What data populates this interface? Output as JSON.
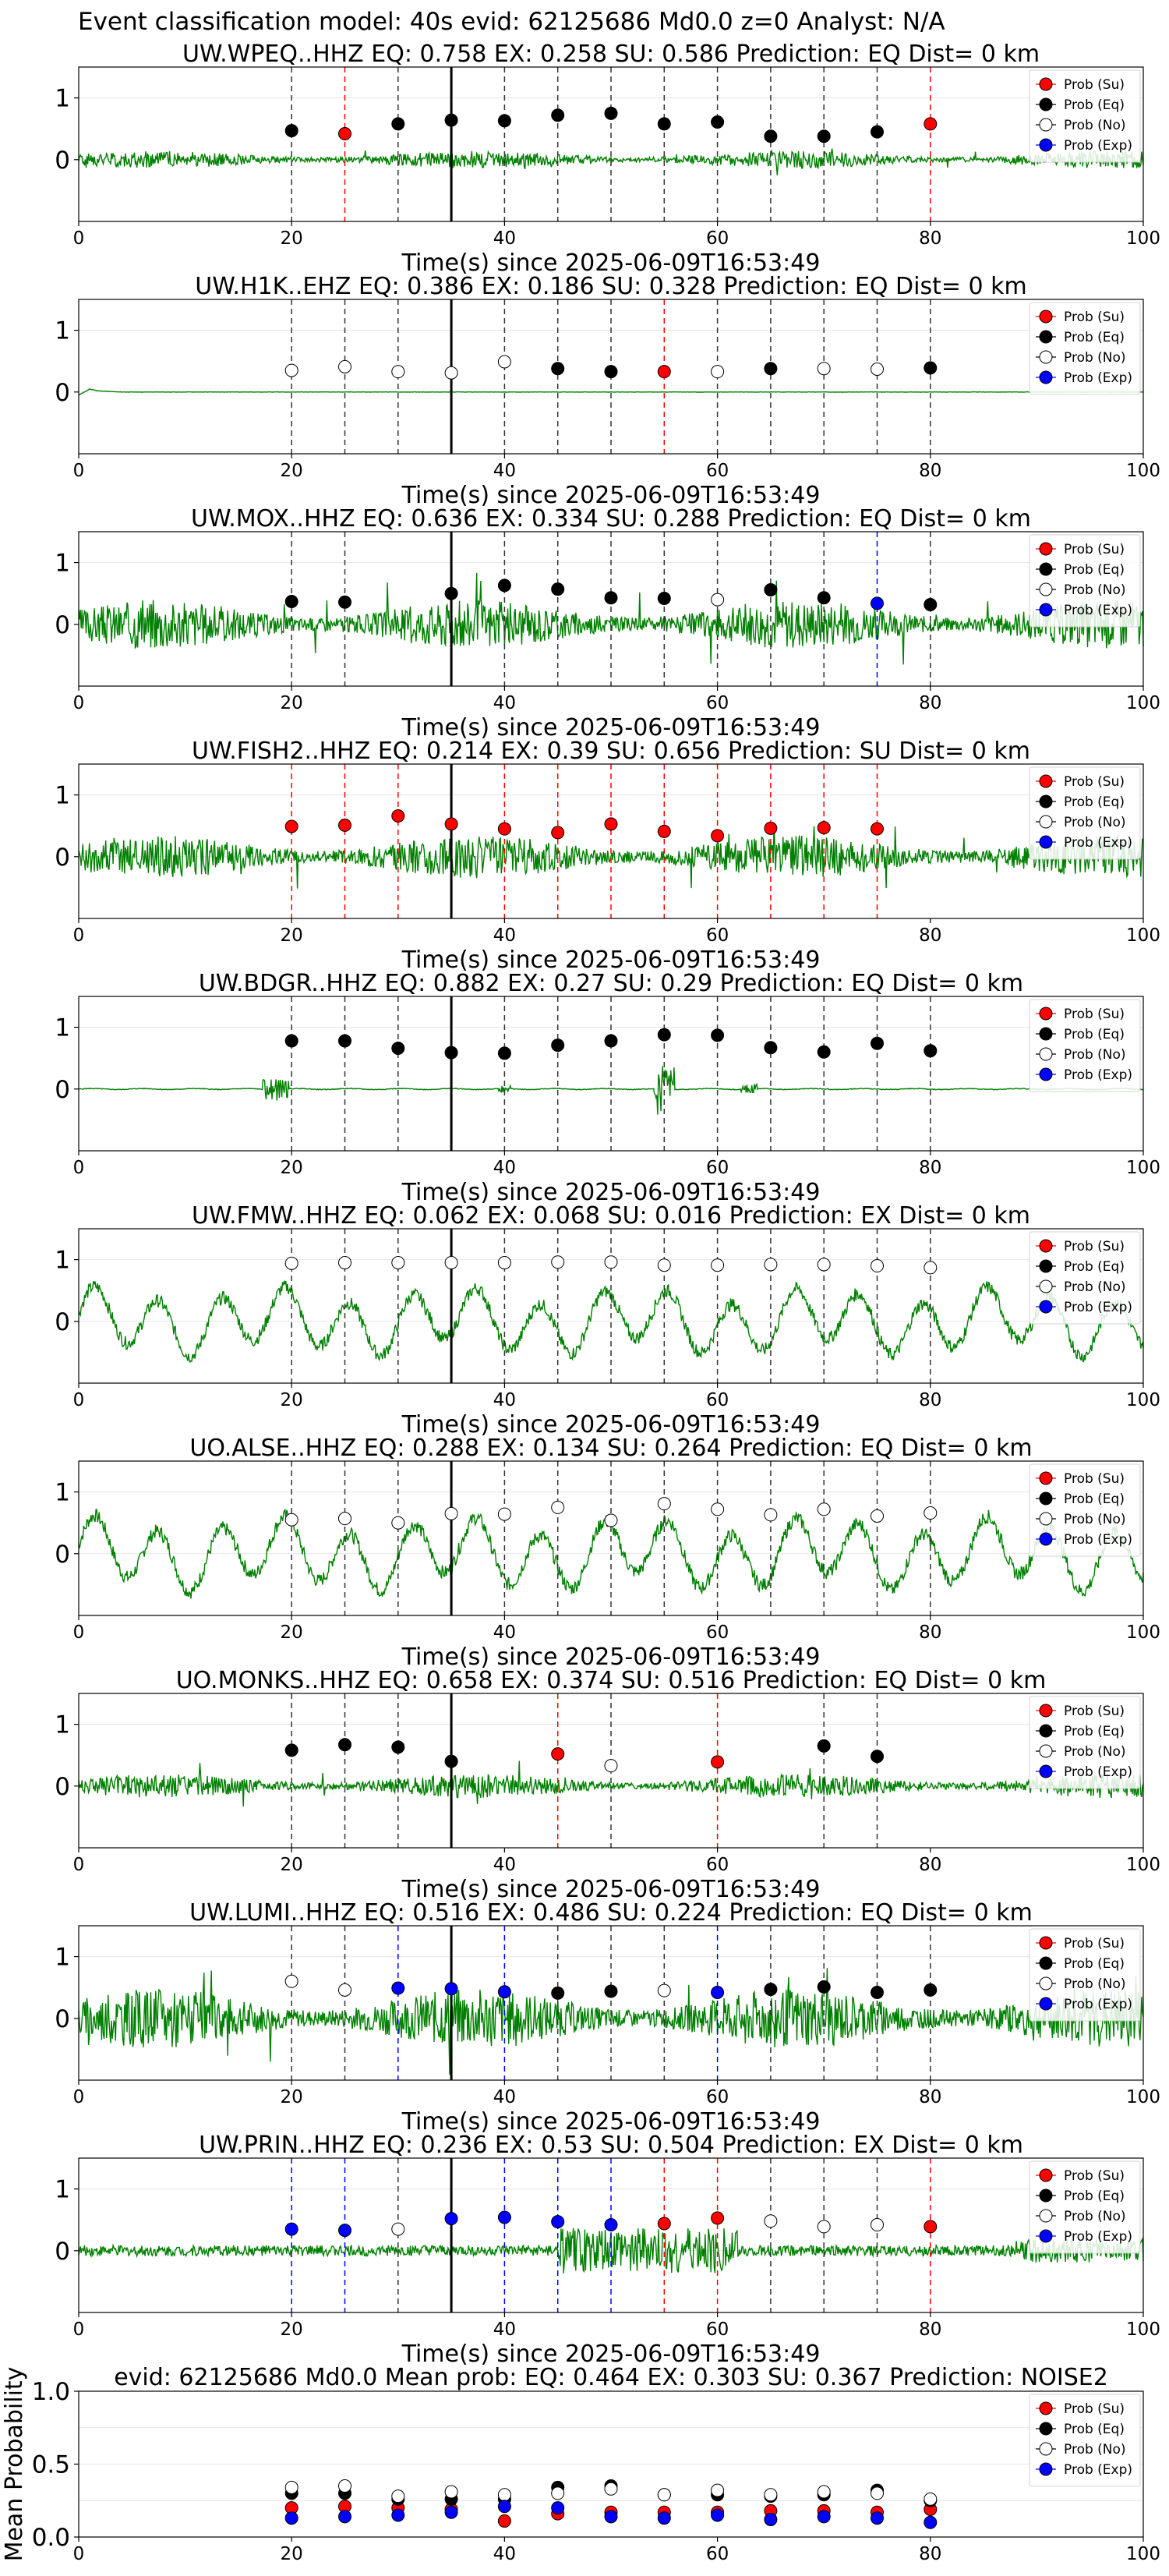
{
  "figure_title": "Event classification model: 40s evid: 62125686 Md0.0 z=0 Analyst: N/A",
  "colors": {
    "su": "#ff0000",
    "eq": "#000000",
    "no": "#ffffff",
    "exp": "#0000ff",
    "trace": "#008000"
  },
  "legend": [
    "Prob (Su)",
    "Prob (Eq)",
    "Prob (No)",
    "Prob (Exp)"
  ],
  "chart_data": {
    "type": "scatter",
    "x_range": [
      0,
      100
    ],
    "x_ticks": [
      "0",
      "20",
      "40",
      "60",
      "80",
      "100"
    ],
    "xlabel": "Time(s) since 2025-06-09T16:53:49",
    "panels": [
      {
        "title": "UW.WPEQ..HHZ   EQ: 0.758  EX: 0.258  SU: 0.586   Prediction: EQ    Dist= 0 km",
        "y_ticks": [
          "1",
          "0"
        ],
        "points": [
          [
            20,
            0.47,
            "eq"
          ],
          [
            25,
            0.42,
            "su"
          ],
          [
            30,
            0.58,
            "eq"
          ],
          [
            35,
            0.64,
            "eq"
          ],
          [
            40,
            0.63,
            "eq"
          ],
          [
            45,
            0.72,
            "eq"
          ],
          [
            50,
            0.75,
            "eq"
          ],
          [
            55,
            0.58,
            "eq"
          ],
          [
            60,
            0.61,
            "eq"
          ],
          [
            65,
            0.38,
            "eq"
          ],
          [
            70,
            0.38,
            "eq"
          ],
          [
            75,
            0.45,
            "eq"
          ],
          [
            80,
            0.58,
            "su"
          ]
        ],
        "trace": {
          "amp": 0.16,
          "style": "noise",
          "seed": 1
        }
      },
      {
        "title": "UW.H1K..EHZ   EQ: 0.386  EX: 0.186  SU: 0.328   Prediction: EQ    Dist= 0 km",
        "y_ticks": [
          "1",
          "0"
        ],
        "points": [
          [
            20,
            0.35,
            "no"
          ],
          [
            25,
            0.41,
            "no"
          ],
          [
            30,
            0.33,
            "no"
          ],
          [
            35,
            0.31,
            "no"
          ],
          [
            40,
            0.49,
            "no"
          ],
          [
            45,
            0.38,
            "eq"
          ],
          [
            50,
            0.33,
            "eq"
          ],
          [
            55,
            0.33,
            "su"
          ],
          [
            60,
            0.33,
            "no"
          ],
          [
            65,
            0.38,
            "eq"
          ],
          [
            70,
            0.38,
            "no"
          ],
          [
            75,
            0.37,
            "no"
          ],
          [
            80,
            0.39,
            "eq"
          ]
        ],
        "trace": {
          "amp": 0.03,
          "style": "flat",
          "seed": 2
        }
      },
      {
        "title": "UW.MOX..HHZ   EQ: 0.636  EX: 0.334  SU: 0.288   Prediction: EQ    Dist= 0 km",
        "y_ticks": [
          "1",
          "0"
        ],
        "points": [
          [
            20,
            0.37,
            "eq"
          ],
          [
            25,
            0.36,
            "eq"
          ],
          [
            35,
            0.5,
            "eq"
          ],
          [
            40,
            0.63,
            "eq"
          ],
          [
            45,
            0.57,
            "eq"
          ],
          [
            50,
            0.43,
            "eq"
          ],
          [
            55,
            0.42,
            "eq"
          ],
          [
            60,
            0.4,
            "no"
          ],
          [
            65,
            0.56,
            "eq"
          ],
          [
            70,
            0.43,
            "eq"
          ],
          [
            75,
            0.34,
            "exp"
          ],
          [
            80,
            0.32,
            "eq"
          ]
        ],
        "trace": {
          "amp": 0.45,
          "style": "noise",
          "seed": 3
        }
      },
      {
        "title": "UW.FISH2..HHZ   EQ: 0.214  EX: 0.39  SU: 0.656   Prediction: SU    Dist= 0 km",
        "y_ticks": [
          "1",
          "0"
        ],
        "points": [
          [
            20,
            0.49,
            "su"
          ],
          [
            25,
            0.51,
            "su"
          ],
          [
            30,
            0.66,
            "su"
          ],
          [
            35,
            0.53,
            "su"
          ],
          [
            40,
            0.45,
            "su"
          ],
          [
            45,
            0.39,
            "su"
          ],
          [
            50,
            0.53,
            "su"
          ],
          [
            55,
            0.41,
            "su"
          ],
          [
            60,
            0.34,
            "su"
          ],
          [
            65,
            0.46,
            "su"
          ],
          [
            70,
            0.47,
            "su"
          ],
          [
            75,
            0.45,
            "su"
          ]
        ],
        "trace": {
          "amp": 0.4,
          "style": "noise",
          "seed": 4
        }
      },
      {
        "title": "UW.BDGR..HHZ   EQ: 0.882  EX: 0.27  SU: 0.29   Prediction: EQ    Dist= 0 km",
        "y_ticks": [
          "1",
          "0"
        ],
        "points": [
          [
            20,
            0.78,
            "eq"
          ],
          [
            25,
            0.78,
            "eq"
          ],
          [
            30,
            0.66,
            "eq"
          ],
          [
            35,
            0.59,
            "eq"
          ],
          [
            40,
            0.58,
            "eq"
          ],
          [
            45,
            0.71,
            "eq"
          ],
          [
            50,
            0.78,
            "eq"
          ],
          [
            55,
            0.88,
            "eq"
          ],
          [
            60,
            0.87,
            "eq"
          ],
          [
            65,
            0.67,
            "eq"
          ],
          [
            70,
            0.6,
            "eq"
          ],
          [
            75,
            0.74,
            "eq"
          ],
          [
            80,
            0.62,
            "eq"
          ]
        ],
        "trace": {
          "amp": 0.04,
          "style": "spikes",
          "seed": 5
        }
      },
      {
        "title": "UW.FMW..HHZ   EQ: 0.062  EX: 0.068  SU: 0.016   Prediction: EX    Dist= 0 km",
        "y_ticks": [
          "1",
          "0"
        ],
        "points": [
          [
            20,
            0.94,
            "no"
          ],
          [
            25,
            0.95,
            "no"
          ],
          [
            30,
            0.95,
            "no"
          ],
          [
            35,
            0.95,
            "no"
          ],
          [
            40,
            0.95,
            "no"
          ],
          [
            45,
            0.96,
            "no"
          ],
          [
            50,
            0.96,
            "no"
          ],
          [
            55,
            0.91,
            "no"
          ],
          [
            60,
            0.91,
            "no"
          ],
          [
            65,
            0.92,
            "no"
          ],
          [
            70,
            0.92,
            "no"
          ],
          [
            75,
            0.9,
            "no"
          ],
          [
            80,
            0.87,
            "no"
          ]
        ],
        "trace": {
          "amp": 0.6,
          "style": "wave",
          "seed": 6
        }
      },
      {
        "title": "UO.ALSE..HHZ   EQ: 0.288  EX: 0.134  SU: 0.264   Prediction: EQ    Dist= 0 km",
        "y_ticks": [
          "1",
          "0"
        ],
        "points": [
          [
            20,
            0.55,
            "no"
          ],
          [
            25,
            0.57,
            "no"
          ],
          [
            30,
            0.5,
            "no"
          ],
          [
            35,
            0.65,
            "no"
          ],
          [
            40,
            0.64,
            "no"
          ],
          [
            45,
            0.75,
            "no"
          ],
          [
            50,
            0.54,
            "no"
          ],
          [
            55,
            0.81,
            "no"
          ],
          [
            60,
            0.72,
            "no"
          ],
          [
            65,
            0.63,
            "no"
          ],
          [
            70,
            0.72,
            "no"
          ],
          [
            75,
            0.61,
            "no"
          ],
          [
            80,
            0.66,
            "no"
          ]
        ],
        "trace": {
          "amp": 0.65,
          "style": "wave",
          "seed": 7
        }
      },
      {
        "title": "UO.MONKS..HHZ   EQ: 0.658  EX: 0.374  SU: 0.516   Prediction: EQ    Dist= 0 km",
        "y_ticks": [
          "1",
          "0"
        ],
        "points": [
          [
            20,
            0.58,
            "eq"
          ],
          [
            25,
            0.67,
            "eq"
          ],
          [
            30,
            0.63,
            "eq"
          ],
          [
            35,
            0.4,
            "eq"
          ],
          [
            45,
            0.52,
            "su"
          ],
          [
            50,
            0.33,
            "no"
          ],
          [
            60,
            0.39,
            "su"
          ],
          [
            70,
            0.65,
            "eq"
          ],
          [
            75,
            0.48,
            "eq"
          ]
        ],
        "trace": {
          "amp": 0.22,
          "style": "noise",
          "seed": 8
        }
      },
      {
        "title": "UW.LUMI..HHZ   EQ: 0.516  EX: 0.486  SU: 0.224   Prediction: EQ    Dist= 0 km",
        "y_ticks": [
          "1",
          "0"
        ],
        "points": [
          [
            20,
            0.6,
            "no"
          ],
          [
            25,
            0.46,
            "no"
          ],
          [
            30,
            0.49,
            "exp"
          ],
          [
            35,
            0.48,
            "exp"
          ],
          [
            40,
            0.43,
            "exp"
          ],
          [
            45,
            0.41,
            "eq"
          ],
          [
            50,
            0.44,
            "eq"
          ],
          [
            55,
            0.45,
            "no"
          ],
          [
            60,
            0.42,
            "exp"
          ],
          [
            65,
            0.47,
            "eq"
          ],
          [
            70,
            0.51,
            "eq"
          ],
          [
            75,
            0.42,
            "eq"
          ],
          [
            80,
            0.46,
            "eq"
          ]
        ],
        "trace": {
          "amp": 0.55,
          "style": "noise",
          "seed": 9
        }
      },
      {
        "title": "UW.PRIN..HHZ   EQ: 0.236  EX: 0.53  SU: 0.504   Prediction: EX    Dist= 0 km",
        "y_ticks": [
          "1",
          "0"
        ],
        "points": [
          [
            20,
            0.35,
            "exp"
          ],
          [
            25,
            0.33,
            "exp"
          ],
          [
            30,
            0.35,
            "no"
          ],
          [
            35,
            0.52,
            "exp"
          ],
          [
            40,
            0.54,
            "exp"
          ],
          [
            45,
            0.47,
            "exp"
          ],
          [
            50,
            0.42,
            "exp"
          ],
          [
            55,
            0.44,
            "su"
          ],
          [
            60,
            0.53,
            "su"
          ],
          [
            65,
            0.48,
            "no"
          ],
          [
            70,
            0.39,
            "no"
          ],
          [
            75,
            0.42,
            "no"
          ],
          [
            80,
            0.39,
            "su"
          ]
        ],
        "trace": {
          "amp": 0.25,
          "style": "burst",
          "seed": 10
        }
      }
    ],
    "mean_panel": {
      "title": "evid: 62125686  Md0.0   Mean prob:   EQ: 0.464  EX: 0.303  SU: 0.367   Prediction: NOISE2",
      "ylabel": "Mean Probability",
      "y_range": [
        0,
        1
      ],
      "y_ticks": [
        "1.0",
        "0.5",
        "0.0"
      ],
      "x": [
        20,
        25,
        30,
        35,
        40,
        45,
        50,
        55,
        60,
        65,
        70,
        75,
        80
      ],
      "series": [
        {
          "name": "Prob (Su)",
          "cls": "su",
          "values": [
            0.2,
            0.21,
            0.2,
            0.19,
            0.11,
            0.16,
            0.17,
            0.17,
            0.17,
            0.18,
            0.18,
            0.17,
            0.19
          ]
        },
        {
          "name": "Prob (Eq)",
          "cls": "eq",
          "values": [
            0.3,
            0.3,
            0.26,
            0.26,
            0.26,
            0.34,
            0.35,
            0.29,
            0.29,
            0.28,
            0.29,
            0.32,
            0.25
          ]
        },
        {
          "name": "Prob (No)",
          "cls": "no",
          "values": [
            0.34,
            0.35,
            0.28,
            0.31,
            0.29,
            0.3,
            0.33,
            0.29,
            0.32,
            0.29,
            0.31,
            0.3,
            0.26
          ]
        },
        {
          "name": "Prob (Exp)",
          "cls": "exp",
          "values": [
            0.13,
            0.14,
            0.15,
            0.17,
            0.21,
            0.2,
            0.14,
            0.13,
            0.15,
            0.12,
            0.14,
            0.13,
            0.1
          ]
        }
      ]
    }
  }
}
